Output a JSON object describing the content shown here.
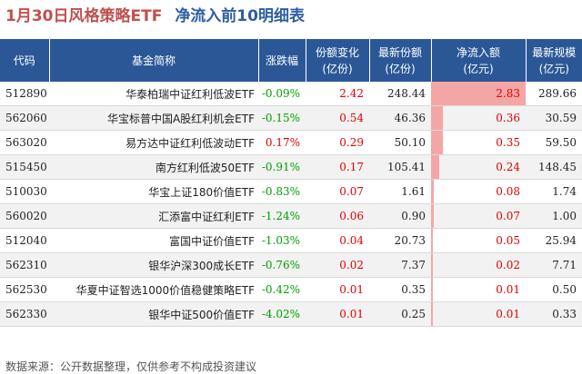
{
  "title": {
    "main": "1月30日风格策略ETF",
    "sub": "净流入前10明细表"
  },
  "headers": {
    "code": "代码",
    "name": "基金简称",
    "change": "涨跌幅",
    "share_change_l1": "份额变化",
    "share_change_l2": "(亿份)",
    "latest_share_l1": "最新份额",
    "latest_share_l2": "(亿份)",
    "inflow_l1": "净流入额",
    "inflow_l2": "(亿元)",
    "scale_l1": "最新规模",
    "scale_l2": "(亿元)"
  },
  "source": "数据来源：公开数据整理，仅供参考不构成投资建议",
  "colors": {
    "header_bg": "#2b5797",
    "title_red": "#c0504d",
    "title_blue": "#2e5d9f",
    "negative": "#00a000",
    "positive": "#e00000",
    "bar": "#f4a6a6"
  },
  "chart_data": {
    "type": "table",
    "inflow_max": 2.83,
    "rows": [
      {
        "code": "512890",
        "name": "华泰柏瑞中证红利低波ETF",
        "change": "-0.09%",
        "share_change": "2.42",
        "latest_share": "248.44",
        "inflow": "2.83",
        "inflow_value": 2.83,
        "scale": "289.66"
      },
      {
        "code": "562060",
        "name": "华宝标普中国A股红利机会ETF",
        "change": "-0.15%",
        "share_change": "0.54",
        "latest_share": "46.36",
        "inflow": "0.36",
        "inflow_value": 0.36,
        "scale": "30.59"
      },
      {
        "code": "563020",
        "name": "易方达中证红利低波动ETF",
        "change": "0.17%",
        "share_change": "0.29",
        "latest_share": "50.10",
        "inflow": "0.35",
        "inflow_value": 0.35,
        "scale": "59.50"
      },
      {
        "code": "515450",
        "name": "南方红利低波50ETF",
        "change": "-0.91%",
        "share_change": "0.17",
        "latest_share": "105.41",
        "inflow": "0.24",
        "inflow_value": 0.24,
        "scale": "148.45"
      },
      {
        "code": "510030",
        "name": "华宝上证180价值ETF",
        "change": "-0.83%",
        "share_change": "0.07",
        "latest_share": "1.61",
        "inflow": "0.08",
        "inflow_value": 0.08,
        "scale": "1.74"
      },
      {
        "code": "560020",
        "name": "汇添富中证红利ETF",
        "change": "-1.24%",
        "share_change": "0.06",
        "latest_share": "0.90",
        "inflow": "0.07",
        "inflow_value": 0.07,
        "scale": "1.00"
      },
      {
        "code": "512040",
        "name": "富国中证价值ETF",
        "change": "-1.03%",
        "share_change": "0.04",
        "latest_share": "20.73",
        "inflow": "0.05",
        "inflow_value": 0.05,
        "scale": "25.94"
      },
      {
        "code": "562310",
        "name": "银华沪深300成长ETF",
        "change": "-0.76%",
        "share_change": "0.02",
        "latest_share": "7.37",
        "inflow": "0.02",
        "inflow_value": 0.02,
        "scale": "7.71"
      },
      {
        "code": "562530",
        "name": "华夏中证智选1000价值稳健策略ETF",
        "change": "-0.42%",
        "share_change": "0.01",
        "latest_share": "0.35",
        "inflow": "0.01",
        "inflow_value": 0.01,
        "scale": "0.50"
      },
      {
        "code": "562330",
        "name": "银华中证500价值ETF",
        "change": "-4.02%",
        "share_change": "0.01",
        "latest_share": "0.25",
        "inflow": "0.01",
        "inflow_value": 0.01,
        "scale": "0.33"
      }
    ]
  }
}
